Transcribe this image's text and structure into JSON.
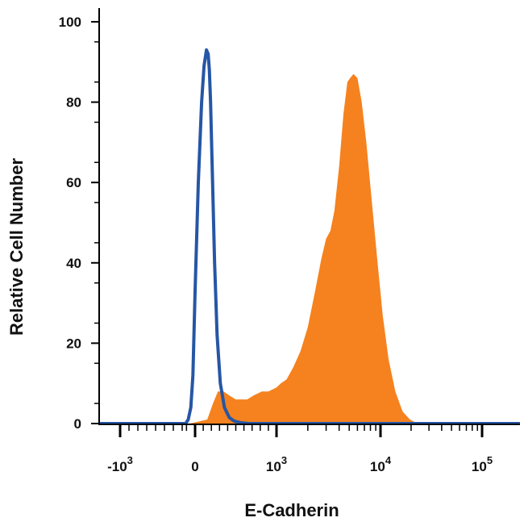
{
  "chart_data": {
    "type": "area",
    "xlabel": "E-Cadherin",
    "ylabel": "Relative Cell Number",
    "x_scale": "biexponential",
    "x_ticks": [
      {
        "base": "-10",
        "exp": "3",
        "value": -1000
      },
      {
        "base": "0",
        "exp": "",
        "value": 0
      },
      {
        "base": "10",
        "exp": "3",
        "value": 1000
      },
      {
        "base": "10",
        "exp": "4",
        "value": 10000
      },
      {
        "base": "10",
        "exp": "5",
        "value": 100000
      }
    ],
    "y_ticks": [
      "0",
      "20",
      "40",
      "60",
      "80",
      "100"
    ],
    "ylim": [
      0,
      100
    ],
    "grid": false,
    "legend": "none",
    "series": [
      {
        "style": "filled",
        "color": "#f5821f",
        "x": [
          -120,
          150,
          220,
          280,
          350,
          420,
          500,
          560,
          640,
          720,
          820,
          900,
          1000,
          1100,
          1250,
          1450,
          1700,
          2000,
          2350,
          2700,
          3000,
          3300,
          3600,
          4000,
          4400,
          4800,
          5100,
          5500,
          6000,
          6600,
          7300,
          8200,
          9300,
          10500,
          12000,
          14000,
          16500,
          19500,
          22000,
          25000,
          30000
        ],
        "y": [
          0,
          1,
          5,
          8,
          8,
          7,
          6,
          6,
          6,
          7,
          8,
          8,
          9,
          10,
          11,
          14,
          18,
          24,
          33,
          41,
          46,
          48,
          53,
          64,
          77,
          85,
          86,
          87,
          86,
          80,
          70,
          56,
          41,
          27,
          16,
          8,
          3,
          1,
          0.3,
          0,
          0
        ]
      },
      {
        "style": "outline",
        "color": "#2656a5",
        "x": [
          -220,
          -160,
          -100,
          -50,
          0,
          40,
          80,
          110,
          140,
          160,
          175,
          190,
          210,
          240,
          270,
          310,
          360,
          420,
          480,
          560,
          660,
          800
        ],
        "y": [
          0,
          1,
          4,
          12,
          33,
          60,
          80,
          89,
          93,
          92,
          88,
          80,
          64,
          40,
          22,
          10,
          4,
          1.5,
          0.6,
          0.2,
          0,
          0
        ]
      }
    ]
  }
}
